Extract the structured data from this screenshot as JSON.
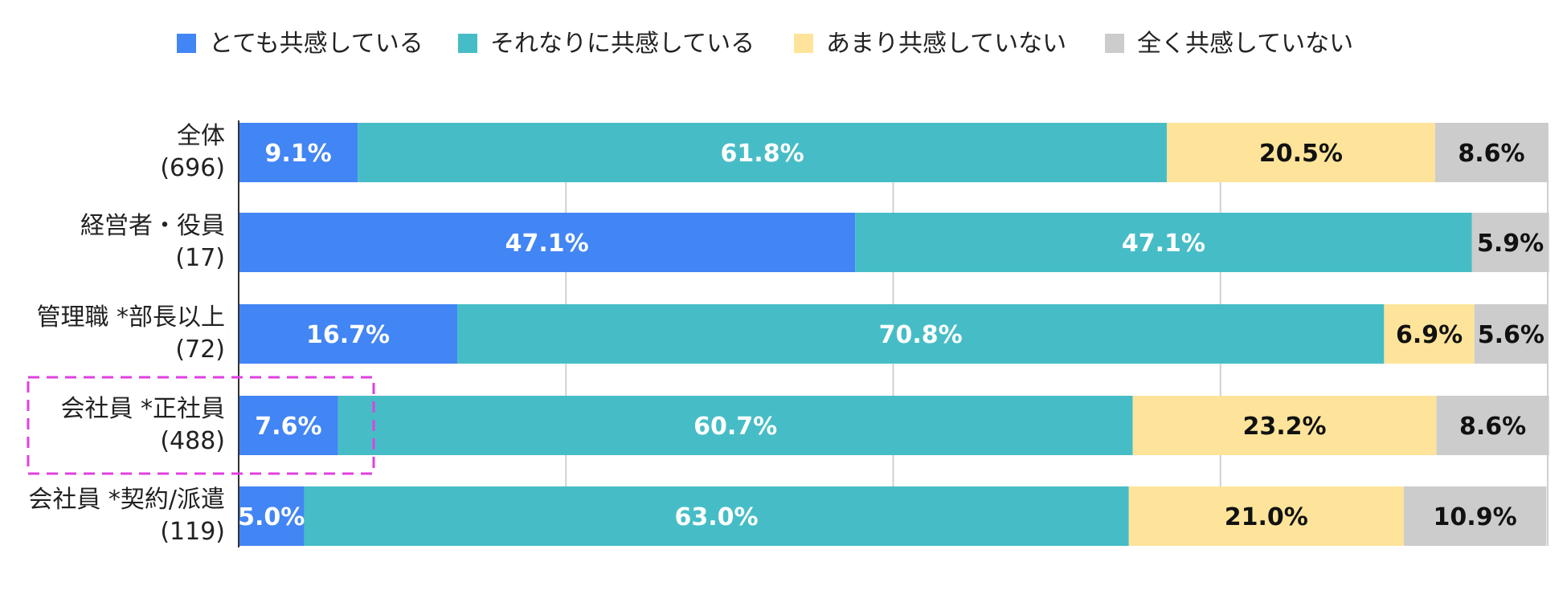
{
  "chart_data": {
    "type": "bar",
    "orientation": "horizontal",
    "stacked": true,
    "normalized_percent": true,
    "grid": true,
    "legend_position": "top",
    "categories": [
      {
        "name": "全体",
        "n": "(696)"
      },
      {
        "name": "経営者・役員",
        "n": "(17)"
      },
      {
        "name": "管理職 *部長以上",
        "n": "(72)"
      },
      {
        "name": "会社員 *正社員",
        "n": "(488)"
      },
      {
        "name": "会社員 *契約/派遣",
        "n": "(119)"
      }
    ],
    "series": [
      {
        "name": "とても共感している",
        "color": "#4285f4",
        "label_color": "#ffffff",
        "values": [
          9.1,
          47.1,
          16.7,
          7.6,
          5.0
        ],
        "labels": [
          "9.1%",
          "47.1%",
          "16.7%",
          "7.6%",
          "5.0%"
        ]
      },
      {
        "name": "それなりに共感している",
        "color": "#46bdc6",
        "label_color": "#ffffff",
        "values": [
          61.8,
          47.1,
          70.8,
          60.7,
          63.0
        ],
        "labels": [
          "61.8%",
          "47.1%",
          "70.8%",
          "60.7%",
          "63.0%"
        ]
      },
      {
        "name": "あまり共感していない",
        "color": "#fde49a",
        "label_color": "#111111",
        "values": [
          20.5,
          0,
          6.9,
          23.2,
          21.0
        ],
        "labels": [
          "20.5%",
          "",
          "6.9%",
          "23.2%",
          "21.0%"
        ]
      },
      {
        "name": "全く共感していない",
        "color": "#cccccc",
        "label_color": "#111111",
        "values": [
          8.6,
          5.9,
          5.6,
          8.6,
          10.9
        ],
        "labels": [
          "8.6%",
          "5.9%",
          "5.6%",
          "8.6%",
          "10.9%"
        ]
      }
    ],
    "xlim": [
      0,
      100
    ],
    "highlight": {
      "category_index": 3,
      "color": "#e040e0",
      "style": "dashed"
    }
  }
}
